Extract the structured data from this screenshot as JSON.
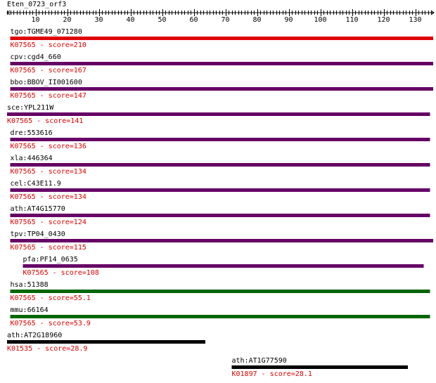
{
  "query": {
    "name": "Eten_0723_orf3",
    "length": 135
  },
  "ruler": {
    "min": 1,
    "max": 135,
    "labels": [
      10,
      20,
      30,
      40,
      50,
      60,
      70,
      80,
      90,
      100,
      110,
      120,
      130
    ]
  },
  "colors": {
    "score_text": "#e00000",
    "bar_red": "#e00000",
    "bar_purple": "#660066",
    "bar_green": "#006600",
    "bar_black": "#000000"
  },
  "hits": [
    {
      "gene": "tgo:TGME49_071280",
      "ko": "K07565",
      "score": "210",
      "start": 2,
      "end": 135,
      "color": "bar_red"
    },
    {
      "gene": "cpv:cgd4_660",
      "ko": "K07565",
      "score": "167",
      "start": 2,
      "end": 135,
      "color": "bar_purple"
    },
    {
      "gene": "bbo:BBOV_II001600",
      "ko": "K07565",
      "score": "147",
      "start": 2,
      "end": 135,
      "color": "bar_purple"
    },
    {
      "gene": "sce:YPL211W",
      "ko": "K07565",
      "score": "141",
      "start": 1,
      "end": 134,
      "color": "bar_purple"
    },
    {
      "gene": "dre:553616",
      "ko": "K07565",
      "score": "136",
      "start": 2,
      "end": 134,
      "color": "bar_purple"
    },
    {
      "gene": "xla:446364",
      "ko": "K07565",
      "score": "134",
      "start": 2,
      "end": 134,
      "color": "bar_purple"
    },
    {
      "gene": "cel:C43E11.9",
      "ko": "K07565",
      "score": "134",
      "start": 2,
      "end": 134,
      "color": "bar_purple"
    },
    {
      "gene": "ath:AT4G15770",
      "ko": "K07565",
      "score": "124",
      "start": 2,
      "end": 134,
      "color": "bar_purple"
    },
    {
      "gene": "tpv:TP04_0430",
      "ko": "K07565",
      "score": "115",
      "start": 2,
      "end": 135,
      "color": "bar_purple"
    },
    {
      "gene": "pfa:PF14_0635",
      "ko": "K07565",
      "score": "108",
      "start": 6,
      "end": 132,
      "color": "bar_purple"
    },
    {
      "gene": "hsa:51388",
      "ko": "K07565",
      "score": "55.1",
      "start": 2,
      "end": 134,
      "color": "bar_green"
    },
    {
      "gene": "mmu:66164",
      "ko": "K07565",
      "score": "53.9",
      "start": 2,
      "end": 134,
      "color": "bar_green"
    },
    {
      "gene": "ath:AT2G18960",
      "ko": "K01535",
      "score": "28.9",
      "start": 1,
      "end": 63,
      "color": "bar_black"
    },
    {
      "gene": "ath:AT1G77590",
      "ko": "K01897",
      "score": "28.1",
      "start": 72,
      "end": 127,
      "color": "bar_black"
    }
  ]
}
